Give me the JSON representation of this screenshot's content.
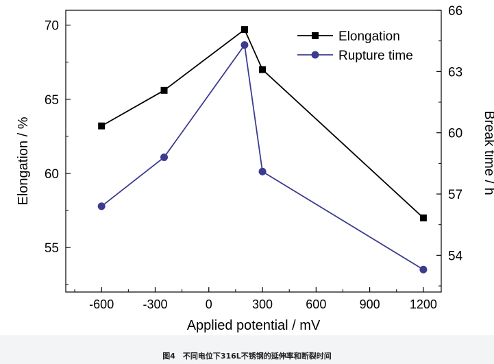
{
  "chart_data": {
    "type": "line",
    "xlabel": "Applied potential / mV",
    "ylabel_left": "Elongation / %",
    "ylabel_right": "Break time / h",
    "xlim": [
      -800,
      1300
    ],
    "ylim_left": [
      52,
      71
    ],
    "ylim_right": [
      52.2,
      66
    ],
    "x_ticks": [
      -600,
      -300,
      0,
      300,
      600,
      900,
      1200
    ],
    "x_tick_labels": [
      "-600",
      "-300",
      "0",
      "300",
      "600",
      "900",
      "1200"
    ],
    "y_left_ticks": [
      55,
      60,
      65,
      70
    ],
    "y_left_tick_labels": [
      "55",
      "60",
      "65",
      "70"
    ],
    "y_right_ticks": [
      54,
      57,
      60,
      63,
      66
    ],
    "y_right_tick_labels": [
      "54",
      "57",
      "60",
      "63",
      "66"
    ],
    "series": [
      {
        "name": "Elongation",
        "axis": "left",
        "marker": "square",
        "color": "#000000",
        "x": [
          -600,
          -250,
          200,
          300,
          1200
        ],
        "values": [
          63.2,
          65.6,
          69.7,
          67.0,
          57.0
        ]
      },
      {
        "name": "Rupture time",
        "axis": "right",
        "marker": "circle",
        "color": "#3b3b8f",
        "x": [
          -600,
          -250,
          200,
          300,
          1200
        ],
        "values": [
          56.4,
          58.8,
          64.3,
          58.1,
          53.3
        ]
      }
    ],
    "legend_position": "top-right",
    "grid": false
  },
  "caption": "图4　不同电位下316L不锈钢的延伸率和断裂时间"
}
